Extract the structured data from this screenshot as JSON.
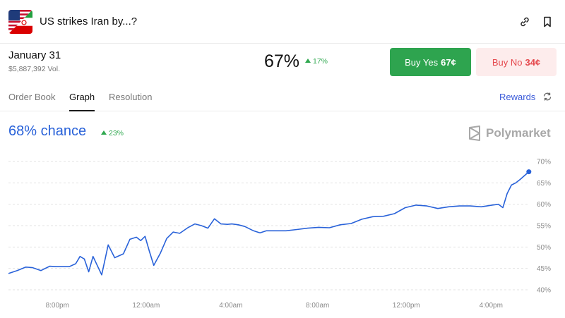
{
  "header": {
    "title": "US strikes Iran by...?",
    "flag_icon": "us-iran-flag-icon",
    "link_icon": "link-icon",
    "bookmark_icon": "bookmark-icon"
  },
  "outcome": {
    "date": "January 31",
    "volume": "$5,887,392 Vol.",
    "price": "67%",
    "price_change": "17%",
    "buy_yes_label": "Buy Yes",
    "buy_yes_price": "67¢",
    "buy_no_label": "Buy No",
    "buy_no_price": "34¢"
  },
  "tabs": [
    {
      "label": "Order Book",
      "active": false
    },
    {
      "label": "Graph",
      "active": true
    },
    {
      "label": "Resolution",
      "active": false
    }
  ],
  "rewards_label": "Rewards",
  "chance": {
    "value": "68% chance",
    "change": "23%"
  },
  "brand": "Polymarket",
  "colors": {
    "accent_blue": "#2962d9",
    "green": "#2ea44f",
    "red": "#e5484d"
  },
  "chart_data": {
    "type": "line",
    "ylim": [
      40,
      70
    ],
    "y_ticks": [
      "70%",
      "65%",
      "60%",
      "55%",
      "50%",
      "45%",
      "40%"
    ],
    "x_ticks": [
      "8:00pm",
      "12:00am",
      "4:00am",
      "8:00am",
      "12:00pm",
      "4:00pm"
    ],
    "x_range_hours": [
      18,
      42
    ],
    "grid": true,
    "series": [
      {
        "x": [
          17.7,
          18.1,
          18.5,
          18.8,
          19.2,
          19.6,
          19.9,
          20.2,
          20.5,
          20.8,
          21.0,
          21.2,
          21.4,
          21.6,
          22.0,
          22.3,
          22.6,
          23.0,
          23.3,
          23.6,
          23.8,
          24.0,
          24.2,
          24.4,
          24.7,
          25.0,
          25.3,
          25.6,
          26.0,
          26.3,
          26.6,
          26.9,
          27.2,
          27.5,
          27.8,
          28.0,
          28.3,
          28.6,
          29.0,
          29.3,
          29.6,
          30.0,
          30.5,
          31.0,
          31.5,
          32.0,
          32.5,
          33.0,
          33.5,
          34.0,
          34.5,
          35.0,
          35.5,
          36.0,
          36.5,
          37.0,
          37.5,
          38.0,
          38.5,
          39.0,
          39.5,
          40.0,
          40.3,
          40.5,
          40.7,
          40.9,
          41.1,
          41.3,
          41.5,
          41.7
        ],
        "y": [
          43.8,
          44.5,
          45.3,
          45.2,
          44.5,
          45.5,
          45.4,
          45.4,
          45.4,
          46.1,
          47.8,
          47.2,
          44.2,
          47.8,
          43.5,
          50.5,
          47.5,
          48.4,
          51.8,
          52.3,
          51.5,
          52.5,
          49.0,
          45.7,
          48.5,
          52.0,
          53.5,
          53.2,
          54.6,
          55.4,
          55.0,
          54.4,
          56.6,
          55.4,
          55.3,
          55.4,
          55.2,
          54.8,
          53.8,
          53.3,
          53.8,
          53.8,
          53.8,
          54.1,
          54.4,
          54.6,
          54.5,
          55.2,
          55.5,
          56.5,
          57.1,
          57.2,
          57.8,
          59.2,
          59.8,
          59.6,
          59.0,
          59.4,
          59.6,
          59.6,
          59.4,
          59.8,
          60.0,
          59.2,
          62.5,
          64.5,
          65.0,
          65.8,
          66.7,
          67.6
        ]
      }
    ]
  }
}
